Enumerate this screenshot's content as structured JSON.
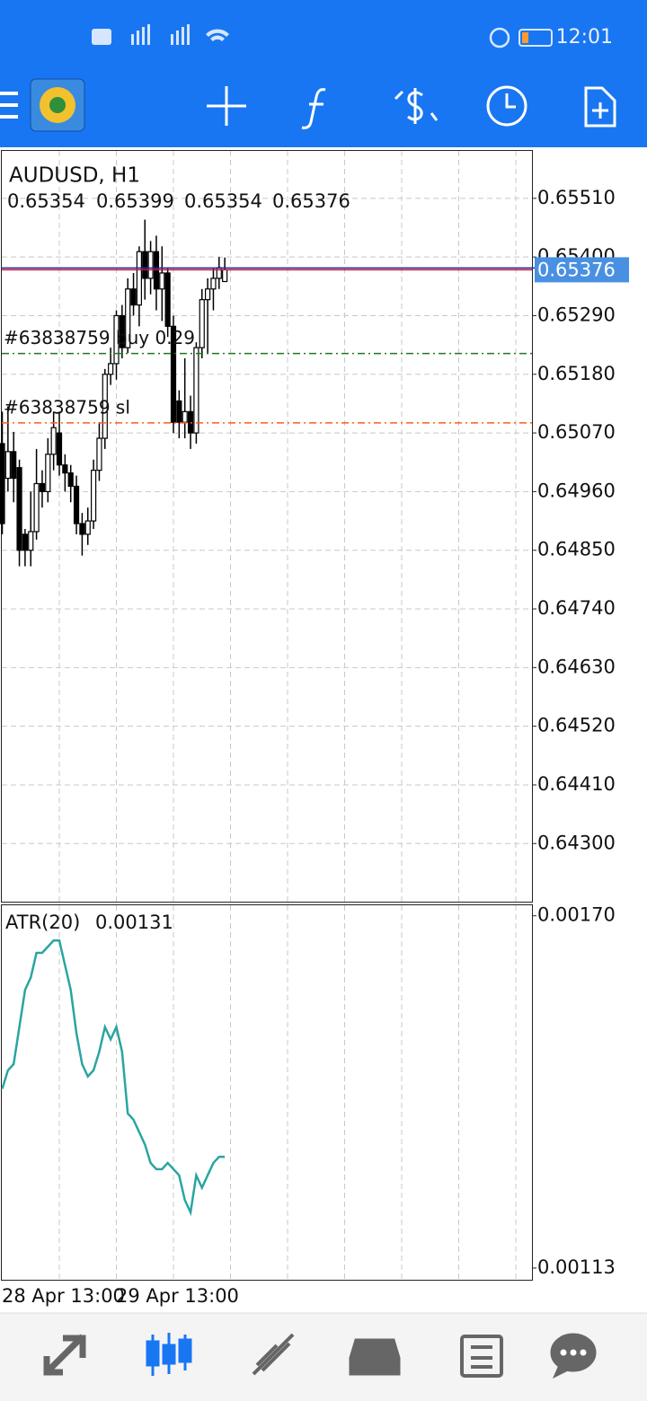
{
  "status_bar": {
    "time": "12:01"
  },
  "chart_data": [
    {
      "type": "candlestick",
      "title": "AUDUSD, H1",
      "open": [
        0.6505,
        0.64985,
        0.65035,
        0.65005,
        0.6488,
        0.6485,
        0.64885,
        0.64975,
        0.6496,
        0.6503,
        0.6507,
        0.6501,
        0.64995,
        0.6497,
        0.649,
        0.6488,
        0.64905,
        0.65,
        0.6506,
        0.6518,
        0.652,
        0.6529,
        0.6523,
        0.6534,
        0.6531,
        0.6541,
        0.6536,
        0.6541,
        0.6534,
        0.6537,
        0.6527,
        0.6513,
        0.6509,
        0.6511,
        0.6507,
        0.6523,
        0.6532,
        0.6534,
        0.6536,
        0.65354
      ],
      "high": [
        0.6511,
        0.6512,
        0.65072,
        0.6502,
        0.6489,
        0.6496,
        0.6504,
        0.65,
        0.6506,
        0.6511,
        0.6511,
        0.6503,
        0.6501,
        0.6499,
        0.6492,
        0.6493,
        0.6502,
        0.6509,
        0.6519,
        0.6523,
        0.653,
        0.6531,
        0.6536,
        0.6537,
        0.6542,
        0.6547,
        0.6543,
        0.6544,
        0.6542,
        0.6538,
        0.6529,
        0.6515,
        0.6521,
        0.6514,
        0.6524,
        0.6534,
        0.6536,
        0.6538,
        0.654,
        0.65399
      ],
      "low": [
        0.6488,
        0.6496,
        0.6494,
        0.6482,
        0.6482,
        0.6482,
        0.6487,
        0.6493,
        0.6494,
        0.65,
        0.6499,
        0.6496,
        0.6494,
        0.6488,
        0.6484,
        0.6486,
        0.6489,
        0.6498,
        0.6504,
        0.6516,
        0.6517,
        0.6521,
        0.6522,
        0.6529,
        0.6527,
        0.6532,
        0.6533,
        0.653,
        0.6528,
        0.6525,
        0.6507,
        0.6506,
        0.6506,
        0.6504,
        0.6505,
        0.6521,
        0.6522,
        0.653,
        0.6534,
        0.65354
      ],
      "close": [
        0.649,
        0.65035,
        0.64985,
        0.6485,
        0.6485,
        0.64885,
        0.64975,
        0.6496,
        0.6503,
        0.6508,
        0.6501,
        0.64995,
        0.6497,
        0.649,
        0.6488,
        0.64905,
        0.65,
        0.6506,
        0.6518,
        0.652,
        0.6529,
        0.6523,
        0.6534,
        0.6531,
        0.6541,
        0.6536,
        0.6541,
        0.6534,
        0.6537,
        0.6527,
        0.6509,
        0.6509,
        0.6511,
        0.6507,
        0.6523,
        0.6532,
        0.6534,
        0.6536,
        0.6538,
        0.65376
      ],
      "bull_color": "#ffffff",
      "bear_color": "#000000",
      "bid_line_color": "#d0103a",
      "lines": [
        {
          "label": "#63838759 buy 0.29",
          "value": 0.65219,
          "color": "#1e7a1e"
        },
        {
          "label": "#63838759 sl",
          "value": 0.65089,
          "color": "#ff5a1f"
        }
      ],
      "ylim": [
        0.64191,
        0.65599
      ],
      "yticks": [
        {
          "value": 0.6551,
          "label": "0.65510"
        },
        {
          "value": 0.654,
          "label": "0.65400"
        },
        {
          "value": 0.6529,
          "label": "0.65290"
        },
        {
          "value": 0.6518,
          "label": "0.65180"
        },
        {
          "value": 0.6507,
          "label": "0.65070"
        },
        {
          "value": 0.6496,
          "label": "0.64960"
        },
        {
          "value": 0.6485,
          "label": "0.64850"
        },
        {
          "value": 0.6474,
          "label": "0.64740"
        },
        {
          "value": 0.6463,
          "label": "0.64630"
        },
        {
          "value": 0.6452,
          "label": "0.64520"
        },
        {
          "value": 0.6441,
          "label": "0.64410"
        },
        {
          "value": 0.643,
          "label": "0.64300"
        }
      ],
      "grid": true
    },
    {
      "type": "line",
      "title": "ATR(20)",
      "categories": [
        null,
        null,
        null,
        null,
        null,
        null,
        null,
        null,
        null,
        null,
        "28 Apr 13:00",
        null,
        null,
        null,
        null,
        null,
        null,
        null,
        null,
        null,
        null,
        null,
        null,
        null,
        null,
        null,
        null,
        null,
        null,
        null,
        "29 Apr 13:00",
        null,
        null,
        null,
        null,
        null,
        null,
        null,
        null,
        null
      ],
      "values": [
        0.00142,
        0.00145,
        0.00146,
        0.00152,
        0.00158,
        0.0016,
        0.00164,
        0.00164,
        0.00165,
        0.00166,
        0.00166,
        0.00162,
        0.00158,
        0.00151,
        0.00146,
        0.00144,
        0.00145,
        0.00148,
        0.00152,
        0.0015,
        0.00152,
        0.00148,
        0.00138,
        0.00137,
        0.00135,
        0.00133,
        0.0013,
        0.00129,
        0.00129,
        0.0013,
        0.00129,
        0.00128,
        0.00124,
        0.00122,
        0.00128,
        0.00126,
        0.00128,
        0.0013,
        0.00131,
        0.00131
      ],
      "color": "#2aa5a0",
      "ylim": [
        0.001111,
        0.001717
      ],
      "yticks": [
        {
          "value": 0.0017,
          "label": "0.00170"
        },
        {
          "value": 0.00113,
          "label": "0.00113"
        }
      ],
      "grid": true
    }
  ]
}
